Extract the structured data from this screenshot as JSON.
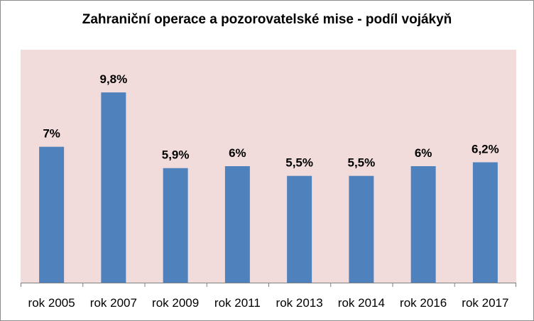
{
  "chart_data": {
    "type": "bar",
    "title": "Zahraniční operace a pozorovatelské mise - podíl vojákyň",
    "categories": [
      "rok 2005",
      "rok 2007",
      "rok 2009",
      "rok 2011",
      "rok 2013",
      "rok 2014",
      "rok 2016",
      "rok 2017"
    ],
    "values": [
      7,
      9.8,
      5.9,
      6,
      5.5,
      5.5,
      6,
      6.2
    ],
    "data_labels": [
      "7%",
      "9,8%",
      "5,9%",
      "6%",
      "5,5%",
      "5,5%",
      "6%",
      "6,2%"
    ],
    "xlabel": "",
    "ylabel": "",
    "ylim": [
      0,
      12
    ],
    "grid": false,
    "legend": "none",
    "colors": {
      "bar": "#4f81bd",
      "plot_background": "#f2dcdb",
      "axis": "#808080"
    }
  }
}
